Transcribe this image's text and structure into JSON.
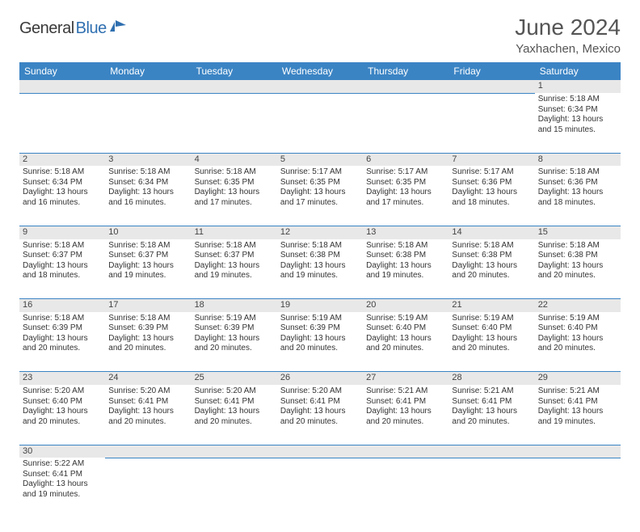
{
  "logo": {
    "text1": "General",
    "text2": "Blue"
  },
  "title": "June 2024",
  "location": "Yaxhachen, Mexico",
  "colors": {
    "header_bg": "#3b84c4",
    "header_text": "#ffffff",
    "daynum_bg": "#e8e8e8",
    "border": "#3b84c4",
    "page_bg": "#ffffff",
    "text": "#333333"
  },
  "typography": {
    "title_fontsize": 28,
    "location_fontsize": 15,
    "header_fontsize": 12,
    "cell_fontsize": 10
  },
  "weekdays": [
    "Sunday",
    "Monday",
    "Tuesday",
    "Wednesday",
    "Thursday",
    "Friday",
    "Saturday"
  ],
  "weeks": [
    {
      "nums": [
        "",
        "",
        "",
        "",
        "",
        "",
        "1"
      ],
      "cells": [
        null,
        null,
        null,
        null,
        null,
        null,
        {
          "sunrise": "Sunrise: 5:18 AM",
          "sunset": "Sunset: 6:34 PM",
          "day1": "Daylight: 13 hours",
          "day2": "and 15 minutes."
        }
      ]
    },
    {
      "nums": [
        "2",
        "3",
        "4",
        "5",
        "6",
        "7",
        "8"
      ],
      "cells": [
        {
          "sunrise": "Sunrise: 5:18 AM",
          "sunset": "Sunset: 6:34 PM",
          "day1": "Daylight: 13 hours",
          "day2": "and 16 minutes."
        },
        {
          "sunrise": "Sunrise: 5:18 AM",
          "sunset": "Sunset: 6:34 PM",
          "day1": "Daylight: 13 hours",
          "day2": "and 16 minutes."
        },
        {
          "sunrise": "Sunrise: 5:18 AM",
          "sunset": "Sunset: 6:35 PM",
          "day1": "Daylight: 13 hours",
          "day2": "and 17 minutes."
        },
        {
          "sunrise": "Sunrise: 5:17 AM",
          "sunset": "Sunset: 6:35 PM",
          "day1": "Daylight: 13 hours",
          "day2": "and 17 minutes."
        },
        {
          "sunrise": "Sunrise: 5:17 AM",
          "sunset": "Sunset: 6:35 PM",
          "day1": "Daylight: 13 hours",
          "day2": "and 17 minutes."
        },
        {
          "sunrise": "Sunrise: 5:17 AM",
          "sunset": "Sunset: 6:36 PM",
          "day1": "Daylight: 13 hours",
          "day2": "and 18 minutes."
        },
        {
          "sunrise": "Sunrise: 5:18 AM",
          "sunset": "Sunset: 6:36 PM",
          "day1": "Daylight: 13 hours",
          "day2": "and 18 minutes."
        }
      ]
    },
    {
      "nums": [
        "9",
        "10",
        "11",
        "12",
        "13",
        "14",
        "15"
      ],
      "cells": [
        {
          "sunrise": "Sunrise: 5:18 AM",
          "sunset": "Sunset: 6:37 PM",
          "day1": "Daylight: 13 hours",
          "day2": "and 18 minutes."
        },
        {
          "sunrise": "Sunrise: 5:18 AM",
          "sunset": "Sunset: 6:37 PM",
          "day1": "Daylight: 13 hours",
          "day2": "and 19 minutes."
        },
        {
          "sunrise": "Sunrise: 5:18 AM",
          "sunset": "Sunset: 6:37 PM",
          "day1": "Daylight: 13 hours",
          "day2": "and 19 minutes."
        },
        {
          "sunrise": "Sunrise: 5:18 AM",
          "sunset": "Sunset: 6:38 PM",
          "day1": "Daylight: 13 hours",
          "day2": "and 19 minutes."
        },
        {
          "sunrise": "Sunrise: 5:18 AM",
          "sunset": "Sunset: 6:38 PM",
          "day1": "Daylight: 13 hours",
          "day2": "and 19 minutes."
        },
        {
          "sunrise": "Sunrise: 5:18 AM",
          "sunset": "Sunset: 6:38 PM",
          "day1": "Daylight: 13 hours",
          "day2": "and 20 minutes."
        },
        {
          "sunrise": "Sunrise: 5:18 AM",
          "sunset": "Sunset: 6:38 PM",
          "day1": "Daylight: 13 hours",
          "day2": "and 20 minutes."
        }
      ]
    },
    {
      "nums": [
        "16",
        "17",
        "18",
        "19",
        "20",
        "21",
        "22"
      ],
      "cells": [
        {
          "sunrise": "Sunrise: 5:18 AM",
          "sunset": "Sunset: 6:39 PM",
          "day1": "Daylight: 13 hours",
          "day2": "and 20 minutes."
        },
        {
          "sunrise": "Sunrise: 5:18 AM",
          "sunset": "Sunset: 6:39 PM",
          "day1": "Daylight: 13 hours",
          "day2": "and 20 minutes."
        },
        {
          "sunrise": "Sunrise: 5:19 AM",
          "sunset": "Sunset: 6:39 PM",
          "day1": "Daylight: 13 hours",
          "day2": "and 20 minutes."
        },
        {
          "sunrise": "Sunrise: 5:19 AM",
          "sunset": "Sunset: 6:39 PM",
          "day1": "Daylight: 13 hours",
          "day2": "and 20 minutes."
        },
        {
          "sunrise": "Sunrise: 5:19 AM",
          "sunset": "Sunset: 6:40 PM",
          "day1": "Daylight: 13 hours",
          "day2": "and 20 minutes."
        },
        {
          "sunrise": "Sunrise: 5:19 AM",
          "sunset": "Sunset: 6:40 PM",
          "day1": "Daylight: 13 hours",
          "day2": "and 20 minutes."
        },
        {
          "sunrise": "Sunrise: 5:19 AM",
          "sunset": "Sunset: 6:40 PM",
          "day1": "Daylight: 13 hours",
          "day2": "and 20 minutes."
        }
      ]
    },
    {
      "nums": [
        "23",
        "24",
        "25",
        "26",
        "27",
        "28",
        "29"
      ],
      "cells": [
        {
          "sunrise": "Sunrise: 5:20 AM",
          "sunset": "Sunset: 6:40 PM",
          "day1": "Daylight: 13 hours",
          "day2": "and 20 minutes."
        },
        {
          "sunrise": "Sunrise: 5:20 AM",
          "sunset": "Sunset: 6:41 PM",
          "day1": "Daylight: 13 hours",
          "day2": "and 20 minutes."
        },
        {
          "sunrise": "Sunrise: 5:20 AM",
          "sunset": "Sunset: 6:41 PM",
          "day1": "Daylight: 13 hours",
          "day2": "and 20 minutes."
        },
        {
          "sunrise": "Sunrise: 5:20 AM",
          "sunset": "Sunset: 6:41 PM",
          "day1": "Daylight: 13 hours",
          "day2": "and 20 minutes."
        },
        {
          "sunrise": "Sunrise: 5:21 AM",
          "sunset": "Sunset: 6:41 PM",
          "day1": "Daylight: 13 hours",
          "day2": "and 20 minutes."
        },
        {
          "sunrise": "Sunrise: 5:21 AM",
          "sunset": "Sunset: 6:41 PM",
          "day1": "Daylight: 13 hours",
          "day2": "and 20 minutes."
        },
        {
          "sunrise": "Sunrise: 5:21 AM",
          "sunset": "Sunset: 6:41 PM",
          "day1": "Daylight: 13 hours",
          "day2": "and 19 minutes."
        }
      ]
    },
    {
      "nums": [
        "30",
        "",
        "",
        "",
        "",
        "",
        ""
      ],
      "cells": [
        {
          "sunrise": "Sunrise: 5:22 AM",
          "sunset": "Sunset: 6:41 PM",
          "day1": "Daylight: 13 hours",
          "day2": "and 19 minutes."
        },
        null,
        null,
        null,
        null,
        null,
        null
      ]
    }
  ]
}
